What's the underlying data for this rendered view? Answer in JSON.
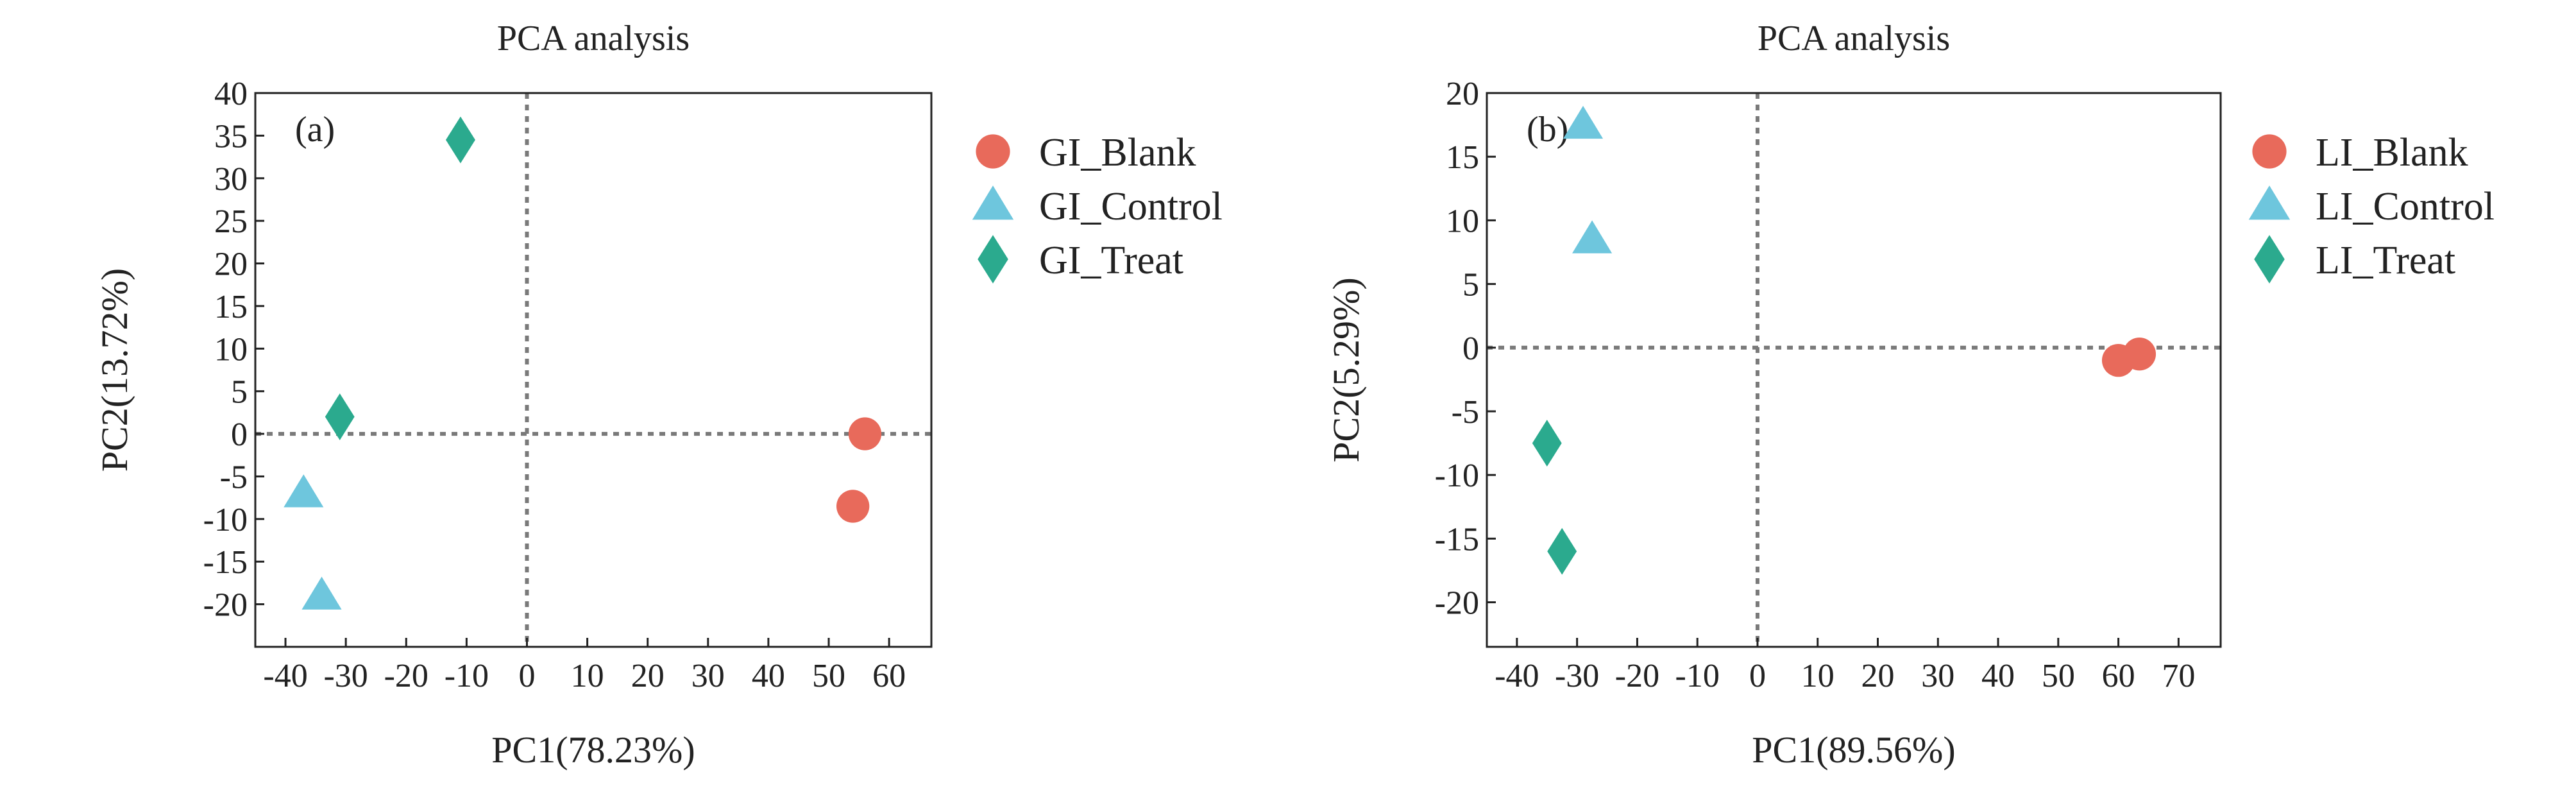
{
  "colors": {
    "blank": "#E86A5B",
    "control": "#6EC6DD",
    "treat": "#2BAA8E"
  },
  "chart_data": [
    {
      "type": "scatter",
      "title": "PCA  analysis",
      "panel_label": "(a)",
      "xlabel": "PC1(78.23%)",
      "ylabel": "PC2(13.72%)",
      "xlim": [
        -45,
        67
      ],
      "ylim": [
        -25,
        40
      ],
      "xticks": [
        -40,
        -30,
        -20,
        -10,
        0,
        10,
        20,
        30,
        40,
        50,
        60
      ],
      "yticks": [
        -20,
        -15,
        -10,
        -5,
        0,
        5,
        10,
        15,
        20,
        25,
        30,
        35,
        40
      ],
      "zero_lines": true,
      "legend_position": "outside-right",
      "series": [
        {
          "name": "GI_Blank",
          "marker": "circle",
          "color": "#E86A5B",
          "points": [
            [
              56,
              0
            ],
            [
              54,
              -8.5
            ]
          ]
        },
        {
          "name": "GI_Control",
          "marker": "triangle",
          "color": "#6EC6DD",
          "points": [
            [
              -37,
              -7
            ],
            [
              -34,
              -19
            ]
          ]
        },
        {
          "name": "GI_Treat",
          "marker": "diamond",
          "color": "#2BAA8E",
          "points": [
            [
              -11,
              34.5
            ],
            [
              -31,
              2
            ]
          ]
        }
      ]
    },
    {
      "type": "scatter",
      "title": "PCA  analysis",
      "panel_label": "(b)",
      "xlabel": "PC1(89.56%)",
      "ylabel": "PC2(5.29%)",
      "xlim": [
        -45,
        77
      ],
      "ylim": [
        -23.5,
        20
      ],
      "xticks": [
        -40,
        -30,
        -20,
        -10,
        0,
        10,
        20,
        30,
        40,
        50,
        60,
        70
      ],
      "yticks": [
        -20,
        -15,
        -10,
        -5,
        0,
        5,
        10,
        15,
        20
      ],
      "zero_lines": true,
      "legend_position": "outside-right",
      "series": [
        {
          "name": "LI_Blank",
          "marker": "circle",
          "color": "#E86A5B",
          "points": [
            [
              60,
              -1
            ],
            [
              63.5,
              -0.5
            ]
          ]
        },
        {
          "name": "LI_Control",
          "marker": "triangle",
          "color": "#6EC6DD",
          "points": [
            [
              -29,
              17.5
            ],
            [
              -27.5,
              8.5
            ]
          ]
        },
        {
          "name": "LI_Treat",
          "marker": "diamond",
          "color": "#2BAA8E",
          "points": [
            [
              -35,
              -7.5
            ],
            [
              -32.5,
              -16
            ]
          ]
        }
      ]
    }
  ]
}
